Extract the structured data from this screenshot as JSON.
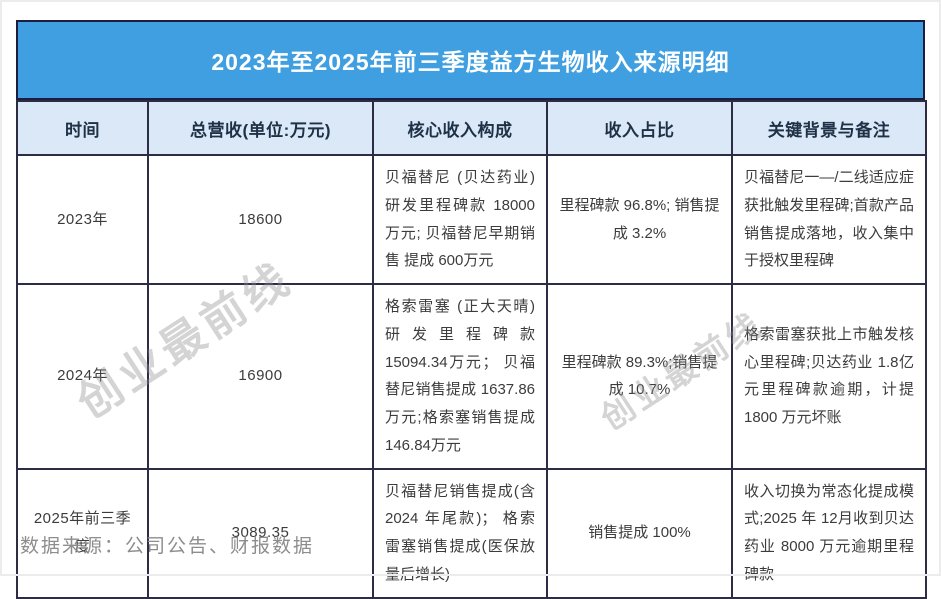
{
  "title": "2023年至2025年前三季度益方生物收入来源明细",
  "chart_data": {
    "type": "table",
    "title": "2023年至2025年前三季度益方生物收入来源明细",
    "columns": [
      "时间",
      "总营收(单位:万元)",
      "核心收入构成",
      "收入占比",
      "关键背景与备注"
    ],
    "rows": [
      [
        "2023年",
        "18600",
        "贝福替尼 (贝达药业) 研发里程碑款 18000万元; 贝福替尼早期销售 提成 600万元",
        "里程碑款 96.8%; 销售提成 3.2%",
        "贝福替尼一—/二线适应症获批触发里程碑;首款产品销售提成落地，收入集中于授权里程碑"
      ],
      [
        "2024年",
        "16900",
        "格索雷塞 (正大天晴) 研发里程碑款15094.34万元； 贝福替尼销售提成 1637.86万元;格索塞销售提成 146.84万元",
        "里程碑款 89.3%;销售提成 10.7%",
        "格索雷塞获批上市触发核心里程碑;贝达药业 1.8亿元里程碑款逾期，计提 1800 万元坏账"
      ],
      [
        "2025年前三季度",
        "3089.35",
        "贝福替尼销售提成(含 2024 年尾款)； 格索雷塞销售提成(医保放量后增长)",
        "销售提成 100%",
        "收入切换为常态化提成模式;2025 年 12月收到贝达药业 8000 万元逾期里程碑款"
      ]
    ],
    "source": "数据来源：公司公告、财报数据"
  },
  "footer": {
    "source": "数据来源：公司公告、财报数据"
  },
  "watermark": {
    "text": "创业最前线"
  },
  "colors": {
    "title_bg": "#3F9FE0",
    "title_text": "#FFFFFF",
    "header_bg": "#DBE8F7",
    "header_text": "#1E3147",
    "cell_text": "#3C3C3C",
    "border": "#2C2C44",
    "footer_text": "#8D8D8D",
    "watermark": "#8F8F8F"
  }
}
